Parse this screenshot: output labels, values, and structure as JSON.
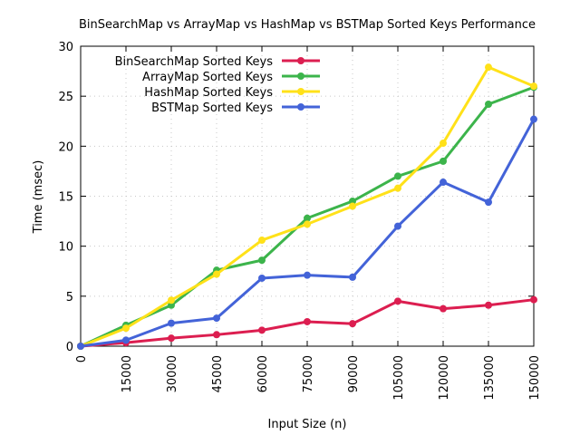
{
  "chart_data": {
    "type": "line",
    "title": "BinSearchMap vs ArrayMap vs HashMap vs BSTMap Sorted Keys Performance",
    "xlabel": "Input Size (n)",
    "ylabel": "Time (msec)",
    "x": [
      0,
      15000,
      30000,
      45000,
      60000,
      75000,
      90000,
      105000,
      120000,
      135000,
      150000
    ],
    "x_ticks": [
      "0",
      "15000",
      "30000",
      "45000",
      "60000",
      "75000",
      "90000",
      "105000",
      "120000",
      "135000",
      "150000"
    ],
    "y_ticks": [
      "0",
      "5",
      "10",
      "15",
      "20",
      "25",
      "30"
    ],
    "xlim": [
      0,
      150000
    ],
    "ylim": [
      0,
      30
    ],
    "grid": true,
    "legend_position": "top-left",
    "series": [
      {
        "name": "BinSearchMap Sorted Keys",
        "color": "#dc1e50",
        "values": [
          0,
          0.35,
          0.8,
          1.15,
          1.6,
          2.45,
          2.25,
          4.5,
          3.75,
          4.1,
          4.65
        ]
      },
      {
        "name": "ArrayMap Sorted Keys",
        "color": "#3cb44b",
        "values": [
          0,
          2.1,
          4.1,
          7.6,
          8.6,
          12.8,
          14.5,
          17.0,
          18.5,
          24.2,
          25.9
        ]
      },
      {
        "name": "HashMap Sorted Keys",
        "color": "#ffe119",
        "values": [
          0,
          1.8,
          4.6,
          7.2,
          10.6,
          12.2,
          14.0,
          15.8,
          20.3,
          27.9,
          26.0
        ]
      },
      {
        "name": "BSTMap Sorted Keys",
        "color": "#4363d8",
        "values": [
          0,
          0.6,
          2.3,
          2.8,
          6.8,
          7.1,
          6.9,
          12.0,
          16.4,
          14.4,
          22.7
        ]
      }
    ]
  }
}
